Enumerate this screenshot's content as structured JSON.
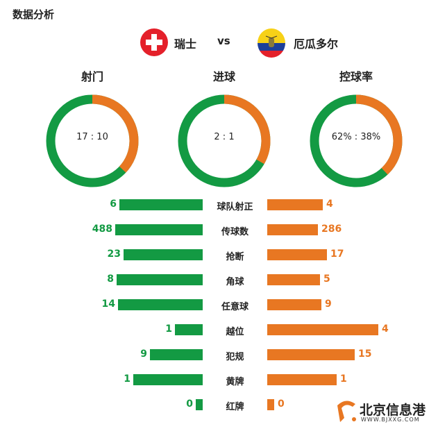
{
  "title": "数据分析",
  "home": {
    "name": "瑞士",
    "flag": "swiss-flag-icon"
  },
  "vs": "vs",
  "away": {
    "name": "厄瓜多尔",
    "flag": "ecuador-flag-icon"
  },
  "colors": {
    "home": "#139a43",
    "away": "#e87722"
  },
  "donuts": [
    {
      "title": "射门",
      "label": "17 : 10",
      "home": 17,
      "away": 10
    },
    {
      "title": "进球",
      "label": "2 : 1",
      "home": 2,
      "away": 1
    },
    {
      "title": "控球率",
      "label": "62% : 38%",
      "home": 62,
      "away": 38
    }
  ],
  "stats": [
    {
      "label": "球队射正",
      "home": "6",
      "away": "4"
    },
    {
      "label": "传球数",
      "home": "488",
      "away": "286"
    },
    {
      "label": "抢断",
      "home": "23",
      "away": "17"
    },
    {
      "label": "角球",
      "home": "8",
      "away": "5"
    },
    {
      "label": "任意球",
      "home": "14",
      "away": "9"
    },
    {
      "label": "越位",
      "home": "1",
      "away": "4"
    },
    {
      "label": "犯规",
      "home": "9",
      "away": "15"
    },
    {
      "label": "黄牌",
      "home": "1",
      "away": "1"
    },
    {
      "label": "红牌",
      "home": "0",
      "away": "0"
    }
  ],
  "watermark": {
    "name": "北京信息港",
    "url": "WWW.BJXXG.COM"
  }
}
